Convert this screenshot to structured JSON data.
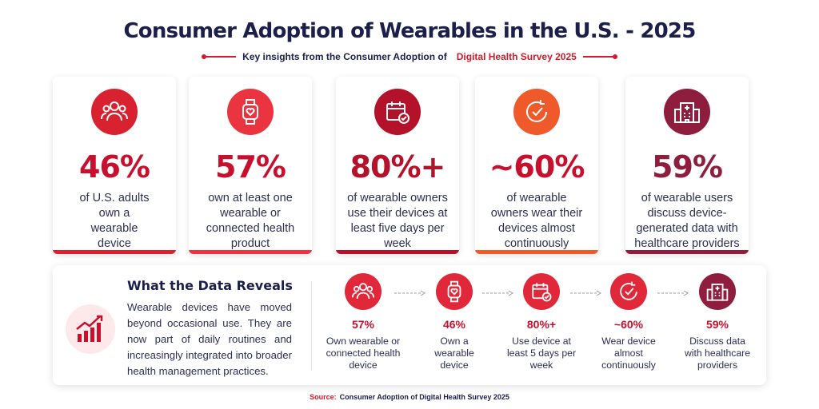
{
  "header": {
    "title": "Consumer Adoption of Wearables in the U.S. - 2025",
    "subtitle_prefix": "Key insights from the Consumer Adoption of",
    "subtitle_accent": "Digital Health Survey 2025"
  },
  "cards": [
    {
      "icon": "people-icon",
      "value": "46%",
      "desc": "of U.S. adults own a wearable device",
      "color": "#c8102e",
      "iconbg": "#d9222f"
    },
    {
      "icon": "smartwatch-icon",
      "value": "57%",
      "desc": "own at least one wearable or connected health product",
      "color": "#c8102e",
      "iconbg": "#ea3440"
    },
    {
      "icon": "calendar-check-icon",
      "value": "80%+",
      "desc": "of wearable owners use their devices at least five days per week",
      "color": "#b3122a",
      "iconbg": "#b3122a"
    },
    {
      "icon": "clock-icon",
      "value": "~60%",
      "desc": "of wearable owners wear their devices almost continuously",
      "color": "#c8102e",
      "iconbg": "#ee5a2a"
    },
    {
      "icon": "hospital-icon",
      "value": "59%",
      "desc": "of wearable users discuss device-generated data with healthcare providers",
      "color": "#8e1d3e",
      "iconbg": "#8e1d3e"
    }
  ],
  "reveal": {
    "title": "What the Data Reveals",
    "body": "Wearable devices have moved beyond occasional use. They are now part of daily routines and increasingly integrated into broader health management practices.",
    "icon": "trending-chart-icon"
  },
  "steps": [
    {
      "icon": "people-icon",
      "value": "57%",
      "desc": "Own wearable or connected health device"
    },
    {
      "icon": "smartwatch-icon",
      "value": "46%",
      "desc": "Own a wearable device"
    },
    {
      "icon": "calendar-check-icon",
      "value": "80%+",
      "desc": "Use device at least 5 days per week"
    },
    {
      "icon": "clock-icon",
      "value": "~60%",
      "desc": "Wear device almost continuously"
    },
    {
      "icon": "hospital-icon",
      "value": "59%",
      "desc": "Discuss data with healthcare providers"
    }
  ],
  "source": {
    "label": "Source:",
    "text": "Consumer Adoption of Digital Health Survey 2025"
  },
  "colors": {
    "accent": "#d11a2a",
    "navy": "#1b1f4a"
  }
}
